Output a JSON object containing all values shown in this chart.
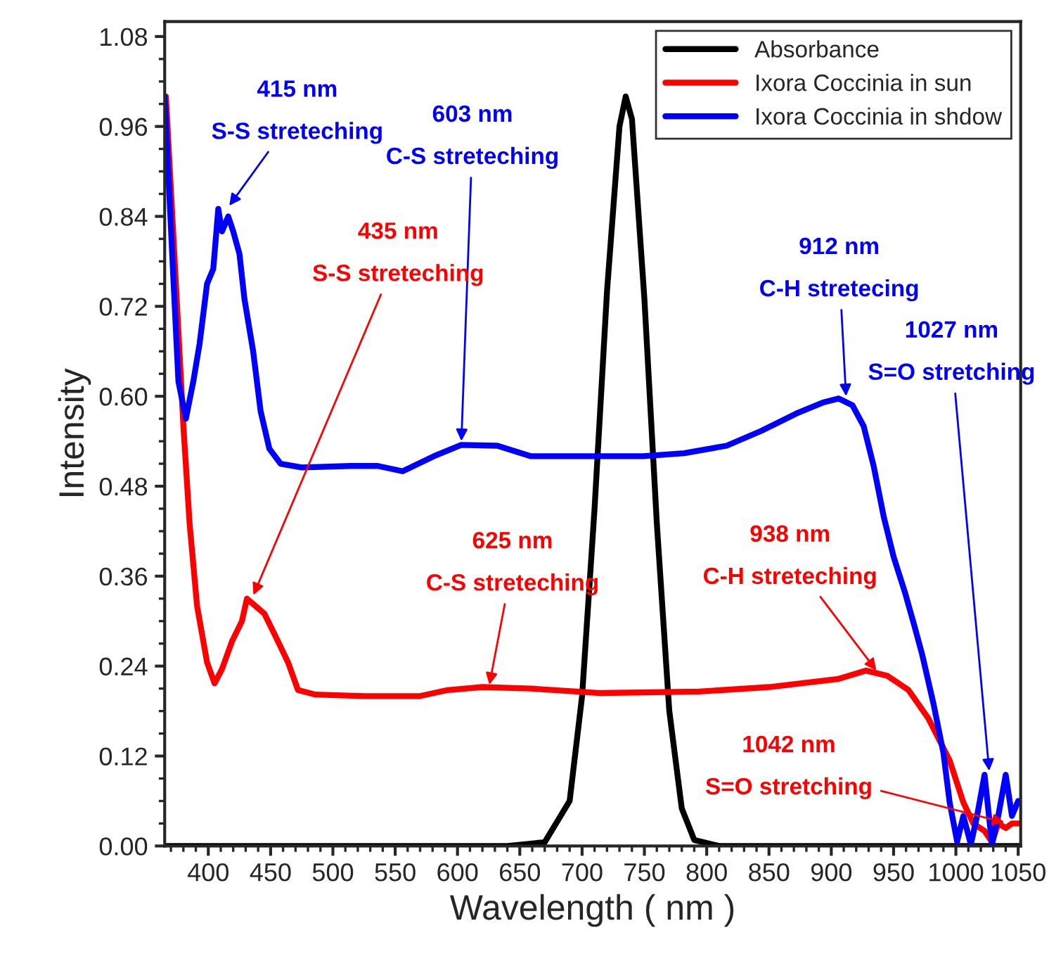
{
  "chart_data": {
    "type": "line",
    "xlabel": "Wavelength ( nm )",
    "ylabel": "Intensity",
    "xlim": [
      365,
      1052
    ],
    "ylim": [
      0,
      1.1
    ],
    "xticks": [
      400,
      450,
      500,
      550,
      600,
      650,
      700,
      750,
      800,
      850,
      900,
      950,
      1000,
      1050
    ],
    "yticks": [
      {
        "value": 0,
        "label": "0.00"
      },
      {
        "value": 0.12,
        "label": "0.12"
      },
      {
        "value": 0.24,
        "label": "0.24"
      },
      {
        "value": 0.36,
        "label": "0.36"
      },
      {
        "value": 0.48,
        "label": "0.48"
      },
      {
        "value": 0.6,
        "label": "0.60"
      },
      {
        "value": 0.72,
        "label": "0.72"
      },
      {
        "value": 0.84,
        "label": "0.84"
      },
      {
        "value": 0.96,
        "label": "0.96"
      },
      {
        "value": 1.08,
        "label": "1.08"
      }
    ],
    "legend": "top right",
    "grid": false,
    "series": [
      {
        "name": "Absorbance",
        "color": "#000000",
        "x": [
          365,
          600,
          640,
          670,
          690,
          700,
          710,
          720,
          730,
          735,
          740,
          750,
          760,
          770,
          780,
          790,
          810,
          850,
          1052
        ],
        "values": [
          0,
          0,
          0,
          0.005,
          0.06,
          0.2,
          0.45,
          0.74,
          0.96,
          1.0,
          0.97,
          0.73,
          0.43,
          0.18,
          0.05,
          0.008,
          0,
          0,
          0
        ]
      },
      {
        "name": "Ixora Coccinia in sun",
        "color": "#ff0000",
        "x": [
          366,
          374,
          380,
          385,
          391,
          399,
          405,
          411,
          419,
          427,
          431,
          438,
          445,
          453,
          464,
          472,
          486,
          525,
          570,
          592,
          620,
          659,
          715,
          794,
          850,
          906,
          928,
          945,
          962,
          978,
          995,
          1006,
          1014,
          1023,
          1029,
          1034,
          1040,
          1045,
          1050
        ],
        "values": [
          1.0,
          0.75,
          0.56,
          0.43,
          0.32,
          0.245,
          0.217,
          0.236,
          0.273,
          0.3,
          0.33,
          0.32,
          0.31,
          0.283,
          0.245,
          0.208,
          0.202,
          0.2,
          0.2,
          0.208,
          0.212,
          0.21,
          0.204,
          0.206,
          0.212,
          0.223,
          0.234,
          0.227,
          0.208,
          0.17,
          0.114,
          0.058,
          0.03,
          0.02,
          0.005,
          0.03,
          0.024,
          0.03,
          0.03
        ]
      },
      {
        "name": "Ixora Coccinia in shdow",
        "color": "#0000ff",
        "x": [
          365,
          371,
          376,
          382,
          388,
          393,
          399,
          404,
          408,
          411,
          416,
          420,
          425,
          429,
          436,
          442,
          449,
          458,
          475,
          514,
          536,
          556,
          581,
          603,
          632,
          659,
          704,
          749,
          782,
          816,
          844,
          872,
          894,
          906,
          917,
          926,
          934,
          942,
          950,
          959,
          967,
          973,
          982,
          990,
          995,
          1001,
          1006,
          1012,
          1017,
          1023,
          1029,
          1034,
          1040,
          1045,
          1050
        ],
        "values": [
          1.0,
          0.79,
          0.62,
          0.57,
          0.62,
          0.67,
          0.75,
          0.77,
          0.85,
          0.82,
          0.84,
          0.82,
          0.79,
          0.73,
          0.66,
          0.58,
          0.53,
          0.51,
          0.505,
          0.507,
          0.507,
          0.5,
          0.52,
          0.535,
          0.534,
          0.52,
          0.52,
          0.52,
          0.524,
          0.534,
          0.554,
          0.577,
          0.592,
          0.597,
          0.588,
          0.56,
          0.507,
          0.44,
          0.386,
          0.339,
          0.292,
          0.255,
          0.19,
          0.124,
          0.058,
          0.006,
          0.04,
          0.002,
          0.04,
          0.095,
          0.002,
          0.04,
          0.095,
          0.04,
          0.06
        ]
      }
    ],
    "annotations": [
      {
        "text": "415 nm\nS-S streteching",
        "x": 415,
        "y": 0.85
      },
      {
        "text": "603 nm\nC-S streteching",
        "x": 603,
        "y": 0.535
      },
      {
        "text": "435 nm\nS-S streteching",
        "x": 435,
        "y": 0.33
      },
      {
        "text": "625 nm\nC-S streteching",
        "x": 625,
        "y": 0.21
      },
      {
        "text": "912 nm\nC-H stretecing",
        "x": 912,
        "y": 0.595
      },
      {
        "text": "938 nm\nC-H streteching",
        "x": 938,
        "y": 0.23
      },
      {
        "text": "1027 nm\nS=O stretching",
        "x": 1027,
        "y": 0.095
      },
      {
        "text": "1042 nm\nS=O stretching",
        "x": 1042,
        "y": 0.03
      }
    ]
  }
}
